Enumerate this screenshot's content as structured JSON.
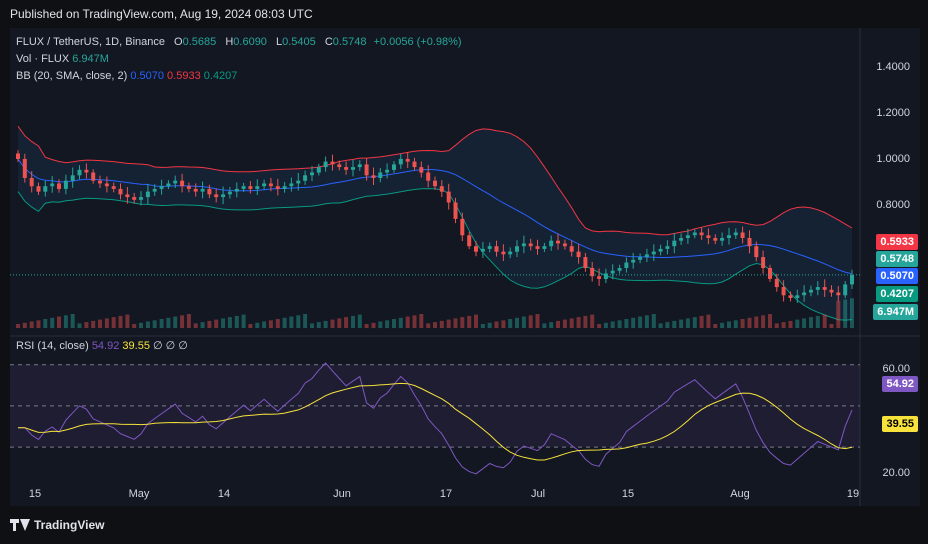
{
  "header": {
    "published": "Published on TradingView.com, Aug 19, 2024 08:03 UTC"
  },
  "footer": {
    "logo_text": "TradingView"
  },
  "legend": {
    "symbol": "FLUX / TetherUS, 1D, Binance",
    "o_label": "O",
    "o": "0.5685",
    "h_label": "H",
    "h": "0.6090",
    "l_label": "L",
    "l": "0.5405",
    "c_label": "C",
    "c": "0.5748",
    "change": "+0.0056 (+0.98%)",
    "vol_label": "Vol · FLUX",
    "vol": "6.947M",
    "bb_label": "BB (20, SMA, close, 2)",
    "bb_mid": "0.5070",
    "bb_up": "0.5933",
    "bb_lo": "0.4207",
    "rsi_label": "RSI (14, close)",
    "rsi": "54.92",
    "rsi_ma": "39.55",
    "rsi_extra": "∅ ∅ ∅"
  },
  "tags": {
    "bb_up": "0.5933",
    "price": "0.5748",
    "bb_mid": "0.5070",
    "bb_lo": "0.4207",
    "vol": "6.947M",
    "rsi": "54.92",
    "rsi_ma": "39.55"
  },
  "colors": {
    "up": "#26a69a",
    "down": "#ef5350",
    "basis": "#2962ff",
    "upper": "#f23645",
    "lower": "#089981",
    "rsi": "#7e57c2",
    "rsi_ma": "#f7e33b",
    "price_tag": "#26a69a"
  },
  "chart_data": [
    {
      "type": "candlestick",
      "title": "FLUX / TetherUS, 1D, Binance",
      "y_ticks": [
        "1.4000",
        "1.2000",
        "1.0000",
        "0.8000"
      ],
      "x_ticks": [
        "15",
        "May",
        "14",
        "Jun",
        "17",
        "Jul",
        "15",
        "Aug",
        "19"
      ],
      "ylim": [
        0.38,
        1.48
      ],
      "last": {
        "open": 0.5685,
        "high": 0.609,
        "low": 0.5405,
        "close": 0.5748
      },
      "close_series_approx": [
        1.0,
        0.93,
        0.9,
        0.88,
        0.9,
        0.91,
        0.89,
        0.92,
        0.94,
        0.96,
        0.95,
        0.92,
        0.91,
        0.9,
        0.89,
        0.87,
        0.86,
        0.85,
        0.86,
        0.88,
        0.89,
        0.9,
        0.91,
        0.92,
        0.9,
        0.89,
        0.88,
        0.89,
        0.87,
        0.86,
        0.87,
        0.88,
        0.89,
        0.9,
        0.89,
        0.9,
        0.91,
        0.9,
        0.89,
        0.9,
        0.91,
        0.92,
        0.94,
        0.95,
        0.97,
        0.99,
        0.98,
        0.97,
        0.96,
        0.97,
        0.98,
        0.94,
        0.93,
        0.95,
        0.96,
        0.98,
        1.0,
        0.99,
        0.97,
        0.95,
        0.92,
        0.9,
        0.88,
        0.84,
        0.78,
        0.72,
        0.68,
        0.66,
        0.67,
        0.68,
        0.66,
        0.65,
        0.66,
        0.68,
        0.69,
        0.68,
        0.67,
        0.68,
        0.7,
        0.69,
        0.68,
        0.66,
        0.64,
        0.6,
        0.57,
        0.56,
        0.58,
        0.59,
        0.6,
        0.62,
        0.63,
        0.64,
        0.65,
        0.66,
        0.67,
        0.68,
        0.7,
        0.71,
        0.72,
        0.73,
        0.72,
        0.71,
        0.7,
        0.71,
        0.72,
        0.73,
        0.71,
        0.68,
        0.64,
        0.6,
        0.56,
        0.53,
        0.5,
        0.49,
        0.5,
        0.51,
        0.52,
        0.53,
        0.52,
        0.51,
        0.5,
        0.54,
        0.5748
      ],
      "series": [
        {
          "name": "BB upper",
          "value_last": 0.5933
        },
        {
          "name": "BB basis",
          "value_last": 0.507
        },
        {
          "name": "BB lower",
          "value_last": 0.4207
        },
        {
          "name": "Vol · FLUX",
          "value_last": "6.947M"
        }
      ]
    },
    {
      "type": "line",
      "title": "RSI (14, close)",
      "y_ticks": [
        "60.00",
        "20.00"
      ],
      "ylim": [
        14,
        82
      ],
      "levels": [
        70,
        50,
        30
      ],
      "series": [
        {
          "name": "RSI",
          "value_last": 54.92
        },
        {
          "name": "RSI MA",
          "value_last": 39.55
        }
      ]
    }
  ]
}
